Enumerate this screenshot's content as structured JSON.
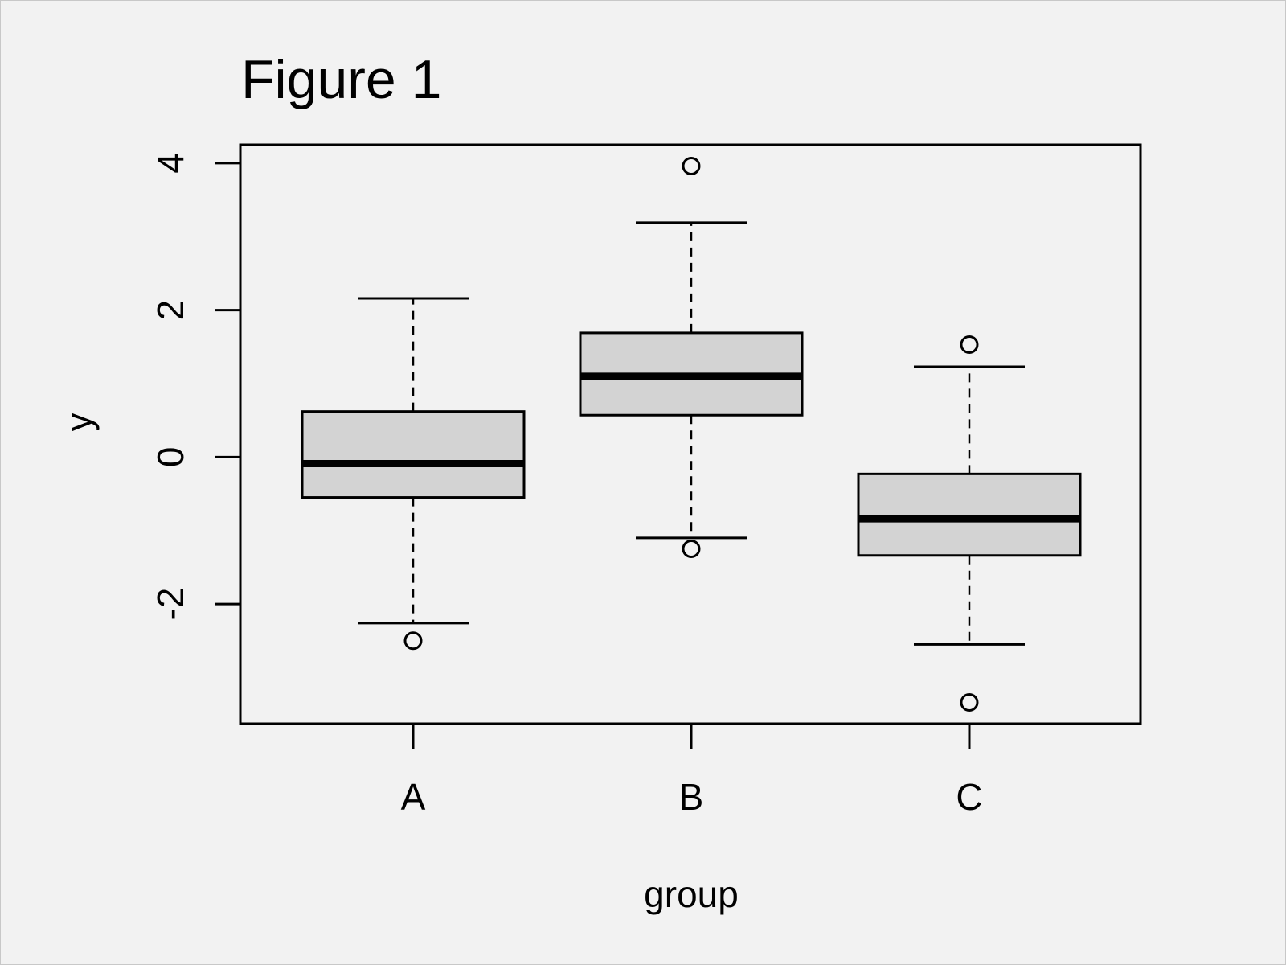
{
  "chart_data": {
    "type": "boxplot",
    "title": "Figure 1",
    "xlabel": "group",
    "ylabel": "y",
    "ylim": [
      -3.63,
      4.25
    ],
    "y_ticks": [
      -2,
      0,
      2,
      4
    ],
    "y_tick_labels": [
      "-2",
      "0",
      "2",
      "4"
    ],
    "categories": [
      "A",
      "B",
      "C"
    ],
    "series": [
      {
        "category": "A",
        "whisker_low": -2.26,
        "q1": -0.55,
        "median": -0.09,
        "q3": 0.62,
        "whisker_high": 2.16,
        "outliers": [
          -2.5
        ]
      },
      {
        "category": "B",
        "whisker_low": -1.1,
        "q1": 0.57,
        "median": 1.1,
        "q3": 1.69,
        "whisker_high": 3.19,
        "outliers": [
          3.96,
          -1.25
        ]
      },
      {
        "category": "C",
        "whisker_low": -2.55,
        "q1": -1.34,
        "median": -0.84,
        "q3": -0.23,
        "whisker_high": 1.23,
        "outliers": [
          1.53,
          -3.34
        ]
      }
    ],
    "box_fill": "#d3d3d3",
    "line_color": "#000000",
    "background": "#f2f2f2",
    "grid": false,
    "legend": "none"
  }
}
